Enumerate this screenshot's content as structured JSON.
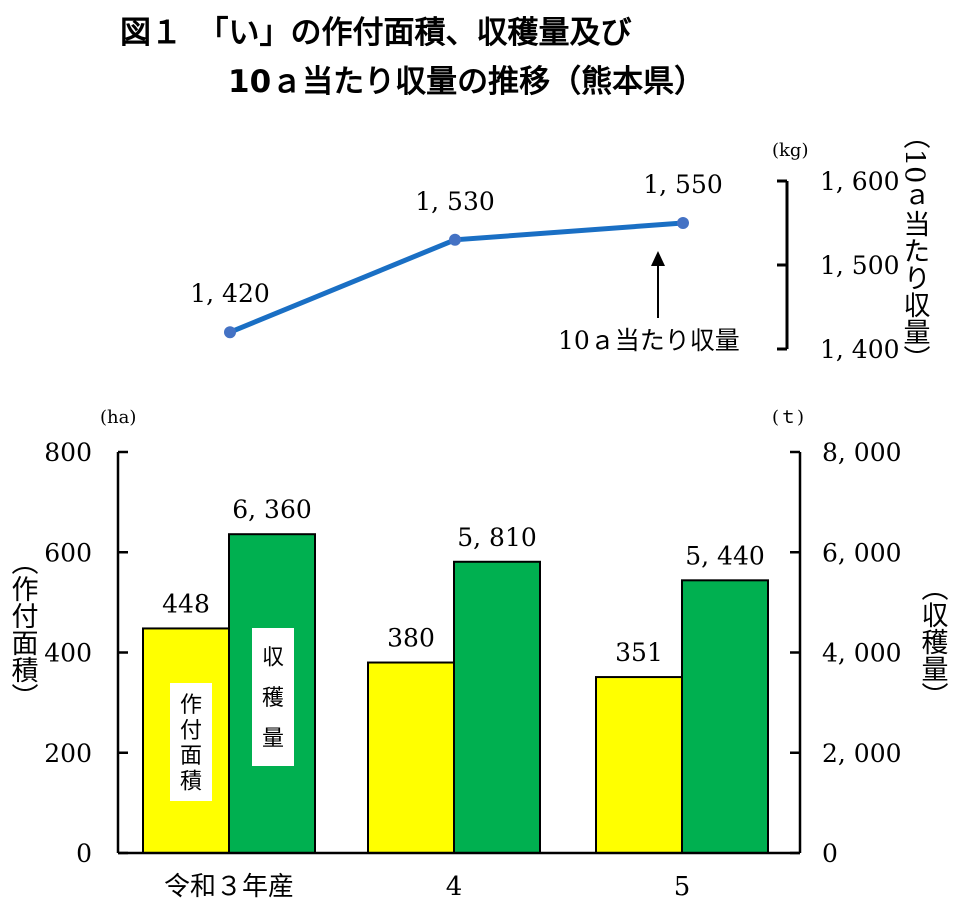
{
  "title": {
    "line1": "図１　「い」の作付面積、収穫量及び",
    "line2": "10ａ当たり収量の推移（熊本県）"
  },
  "chart_data": [
    {
      "type": "line",
      "categories": [
        "令和３年産",
        "4",
        "5"
      ],
      "series": [
        {
          "name": "10ａ当たり収量",
          "values": [
            1420,
            1530,
            1550
          ],
          "color": "#1a6fc4"
        }
      ],
      "data_labels": [
        "1, 420",
        "1, 530",
        "1, 550"
      ],
      "ylabel": "（10ａ当たり収量）",
      "yunit": "(kg)",
      "ylim": [
        1400,
        1600
      ],
      "yticks": [
        1400,
        1500,
        1600
      ],
      "ytick_labels": [
        "1, 400",
        "1, 500",
        "1, 600"
      ],
      "axis_side": "right",
      "annotation": "10ａ当たり収量"
    },
    {
      "type": "bar",
      "categories": [
        "令和３年産",
        "4",
        "5"
      ],
      "series": [
        {
          "name": "作付面積",
          "axis": "left",
          "values": [
            448,
            380,
            351
          ],
          "color": "#ffff00",
          "data_labels": [
            "448",
            "380",
            "351"
          ]
        },
        {
          "name": "収穫量",
          "axis": "right",
          "values": [
            6360,
            5810,
            5440
          ],
          "color": "#00b050",
          "data_labels": [
            "6, 360",
            "5, 810",
            "5, 440"
          ]
        }
      ],
      "y_left": {
        "label": "（作付面積）",
        "unit": "(ha)",
        "ylim": [
          0,
          800
        ],
        "ticks": [
          0,
          200,
          400,
          600,
          800
        ],
        "tick_labels": [
          "0",
          "200",
          "400",
          "600",
          "800"
        ]
      },
      "y_right": {
        "label": "（収穫量）",
        "unit": "(ｔ)",
        "ylim": [
          0,
          8000
        ],
        "ticks": [
          0,
          2000,
          4000,
          6000,
          8000
        ],
        "tick_labels": [
          "0",
          "2, 000",
          "4, 000",
          "6, 000",
          "8, 000"
        ]
      },
      "bar_labels": [
        "作付面積",
        "収穫量"
      ],
      "grid": false
    }
  ]
}
